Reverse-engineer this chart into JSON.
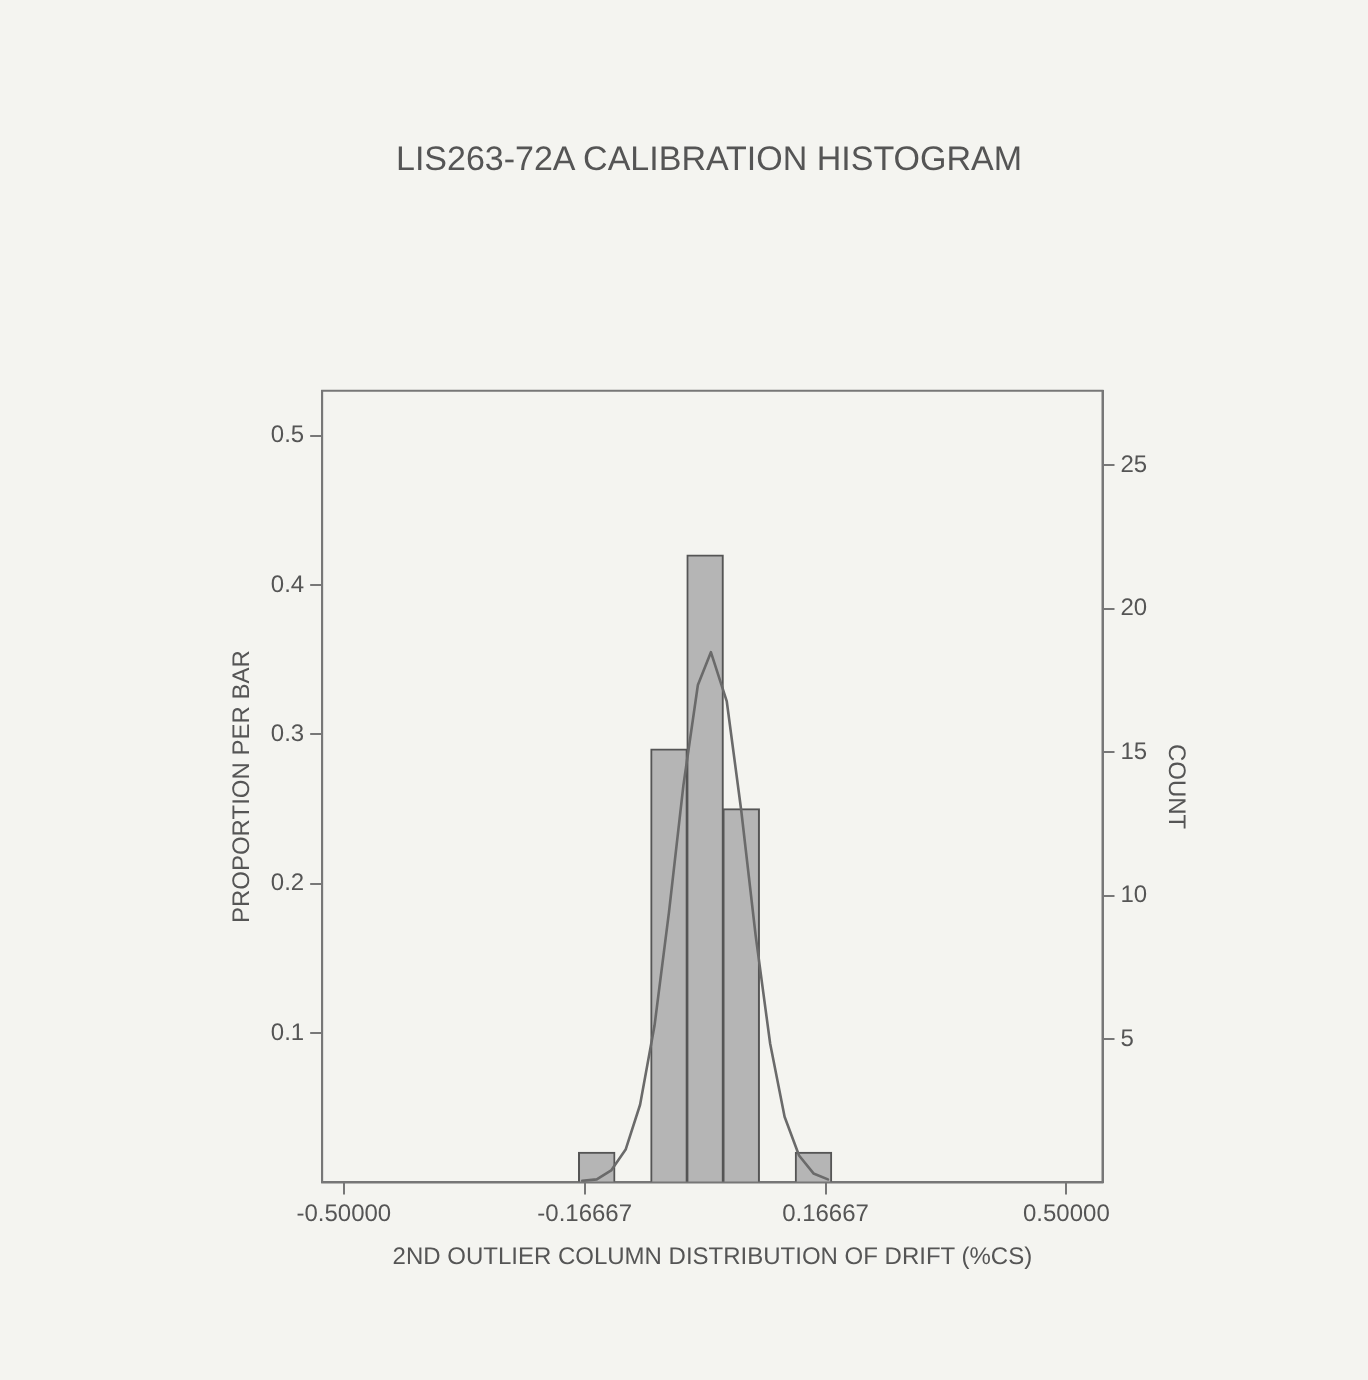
{
  "chart_data": {
    "type": "histogram",
    "title": "LIS263-72A CALIBRATION HISTOGRAM",
    "xlabel": "2ND OUTLIER COLUMN DISTRIBUTION OF DRIFT (%CS)",
    "ylabel": "PROPORTION PER BAR",
    "y2label": "COUNT",
    "bins": [
      -0.175,
      -0.125,
      -0.075,
      -0.025,
      0.025,
      0.075,
      0.125,
      0.175
    ],
    "series": [
      {
        "color": "#b5b5b5",
        "values": [
          0.02,
          0,
          0.29,
          0.42,
          0.25,
          0,
          0.02
        ]
      },
      {
        "type": "line",
        "color": "#6a6a6a",
        "x": [
          -0.17,
          -0.15,
          -0.13,
          -0.11,
          -0.09,
          -0.07,
          -0.05,
          -0.03,
          -0.01,
          0.008,
          0.03,
          0.05,
          0.07,
          0.09,
          0.11,
          0.13,
          0.15,
          0.17
        ],
        "values": [
          0.001,
          0.002,
          0.008,
          0.022,
          0.052,
          0.105,
          0.181,
          0.266,
          0.333,
          0.355,
          0.322,
          0.249,
          0.165,
          0.093,
          0.044,
          0.018,
          0.006,
          0.002
        ]
      }
    ],
    "xlim": [
      -0.53,
      0.55
    ],
    "xticks": [
      {
        "value": -0.5,
        "label": "-0.50000"
      },
      {
        "value": -0.16667,
        "label": "-0.16667"
      },
      {
        "value": 0.16667,
        "label": "0.16667"
      },
      {
        "value": 0.5,
        "label": "0.50000"
      }
    ],
    "ylim": [
      0,
      0.53
    ],
    "yticks": [
      0.1,
      0.2,
      0.3,
      0.4,
      0.5
    ],
    "y2lim": [
      0,
      27.6
    ],
    "y2ticks": [
      5,
      10,
      15,
      20,
      25
    ],
    "grid": false,
    "legend": false
  }
}
